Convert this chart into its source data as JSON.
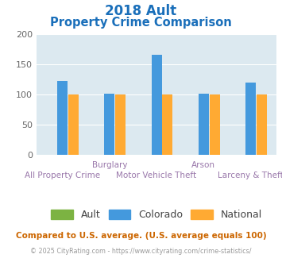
{
  "title_line1": "2018 Ault",
  "title_line2": "Property Crime Comparison",
  "title_color": "#1a6fba",
  "categories": [
    "All Property Crime",
    "Burglary",
    "Motor Vehicle Theft",
    "Arson",
    "Larceny & Theft"
  ],
  "category_top_labels": [
    "",
    "Burglary",
    "",
    "Arson",
    ""
  ],
  "category_bot_labels": [
    "All Property Crime",
    "",
    "Motor Vehicle Theft",
    "",
    "Larceny & Theft"
  ],
  "ault_values": [
    0,
    0,
    0,
    0,
    0
  ],
  "colorado_values": [
    122,
    101,
    166,
    101,
    120
  ],
  "national_values": [
    100,
    100,
    100,
    100,
    100
  ],
  "ault_color": "#7cb342",
  "colorado_color": "#4499dd",
  "national_color": "#ffaa33",
  "ylim": [
    0,
    200
  ],
  "yticks": [
    0,
    50,
    100,
    150,
    200
  ],
  "bg_color": "#dce9f0",
  "legend_labels": [
    "Ault",
    "Colorado",
    "National"
  ],
  "footer_text1": "Compared to U.S. average. (U.S. average equals 100)",
  "footer_text2": "© 2025 CityRating.com - https://www.cityrating.com/crime-statistics/",
  "footer_color1": "#cc6600",
  "footer_color2": "#999999",
  "label_color": "#9977aa",
  "tick_color": "#666666",
  "bar_width": 0.22,
  "bar_gap": 0.015
}
